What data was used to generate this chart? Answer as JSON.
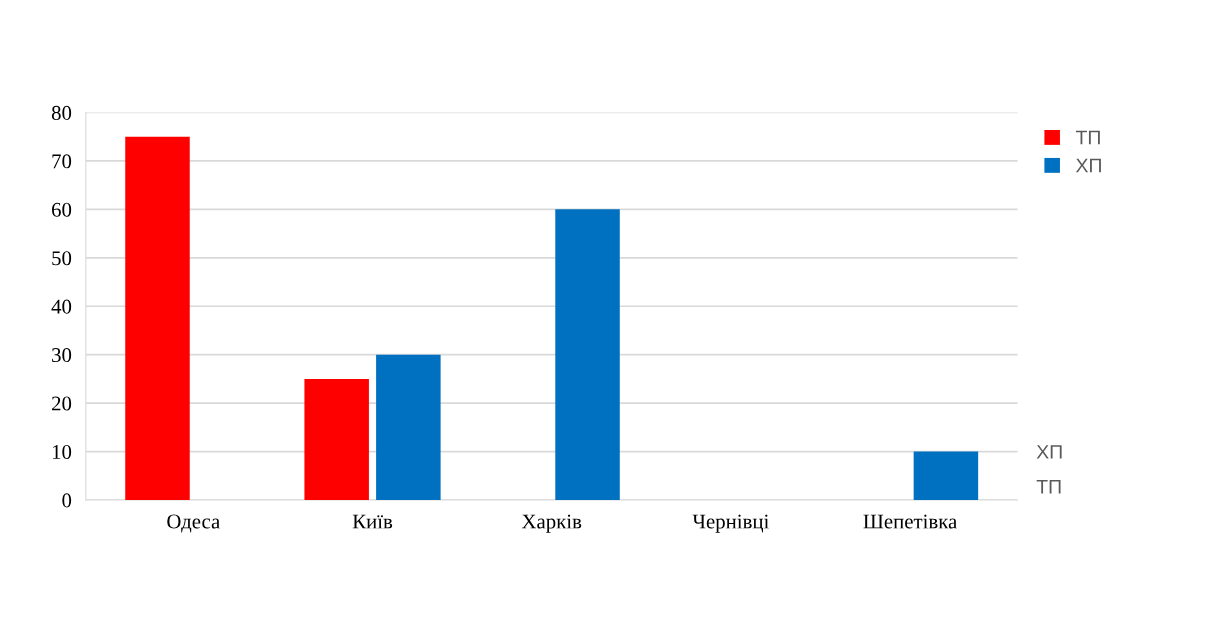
{
  "chart_data": {
    "type": "bar",
    "categories": [
      "Одеса",
      "Київ",
      "Харків",
      "Чернівці",
      "Шепетівка"
    ],
    "series": [
      {
        "name": "ТП",
        "color": "#ff0000",
        "values": [
          75,
          25,
          0,
          0,
          0
        ]
      },
      {
        "name": "ХП",
        "color": "#0070c0",
        "values": [
          0,
          30,
          60,
          0,
          10
        ]
      }
    ],
    "ylim": [
      0,
      80
    ],
    "yticks": [
      0,
      10,
      20,
      30,
      40,
      50,
      60,
      70,
      80
    ],
    "grid": "y",
    "legend": "top right",
    "annotations": [
      "ХП",
      "ТП"
    ]
  }
}
